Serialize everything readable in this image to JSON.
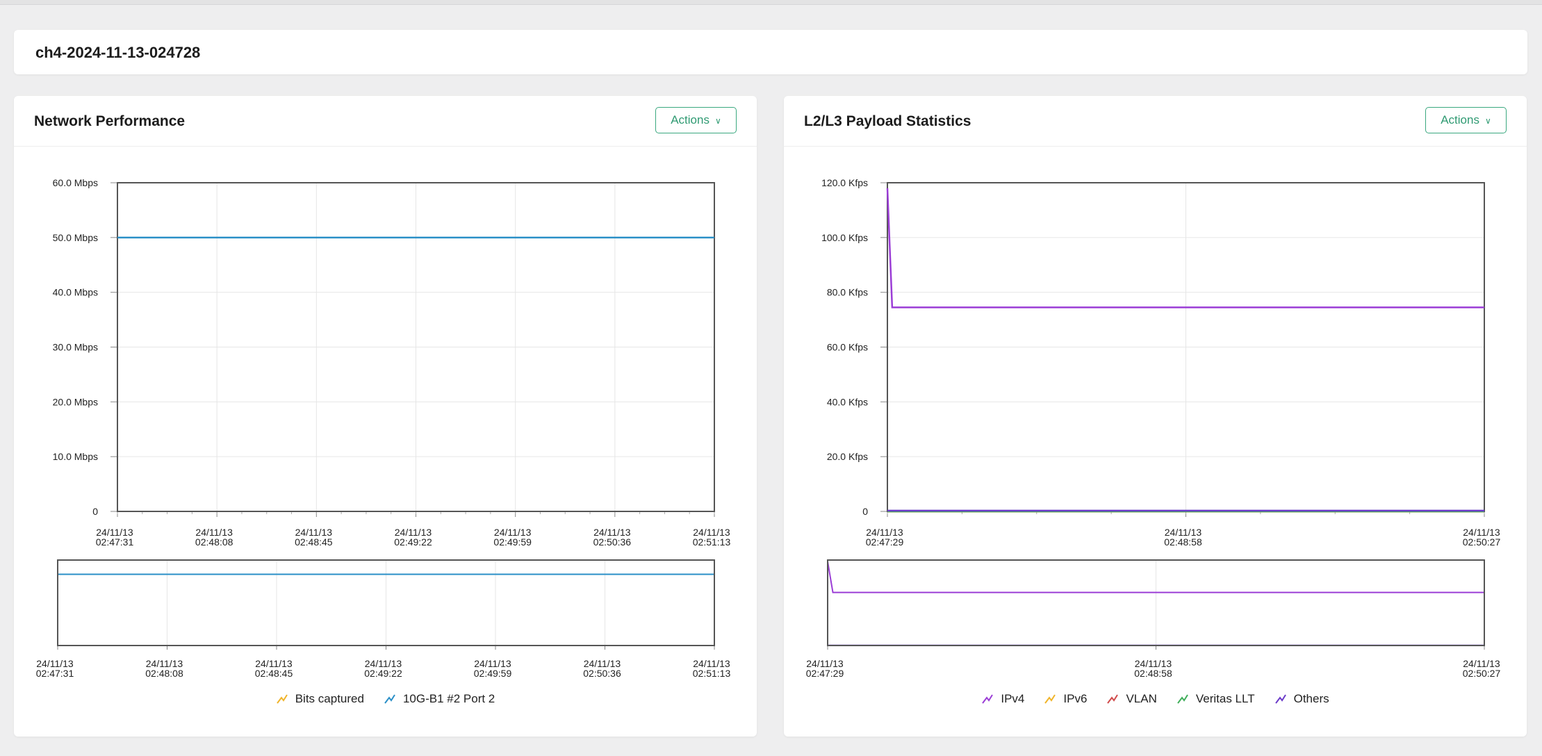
{
  "title_card": {
    "title": "ch4-2024-11-13-024728"
  },
  "panels": [
    {
      "id": "network-performance",
      "title": "Network Performance",
      "actions_label": "Actions",
      "legend": [
        {
          "label": "Bits captured",
          "color": "#f0b429"
        },
        {
          "label": "10G-B1 #2 Port 2",
          "color": "#2a8fc7"
        }
      ]
    },
    {
      "id": "l2l3-payload",
      "title": "L2/L3 Payload Statistics",
      "actions_label": "Actions",
      "legend": [
        {
          "label": "IPv4",
          "color": "#9b3dd6"
        },
        {
          "label": "IPv6",
          "color": "#f0b429"
        },
        {
          "label": "VLAN",
          "color": "#d04a4a"
        },
        {
          "label": "Veritas LLT",
          "color": "#3fae5a"
        },
        {
          "label": "Others",
          "color": "#6a3ac8"
        }
      ]
    }
  ],
  "chart_data": [
    {
      "type": "line",
      "title": "Network Performance",
      "y_unit": "Mbps",
      "ylim": [
        0,
        60
      ],
      "y_ticks": [
        "0",
        "10.0 Mbps",
        "20.0 Mbps",
        "30.0 Mbps",
        "40.0 Mbps",
        "50.0 Mbps",
        "60.0 Mbps"
      ],
      "x_ticks": [
        [
          "24/11/13",
          "02:47:31"
        ],
        [
          "24/11/13",
          "02:48:08"
        ],
        [
          "24/11/13",
          "02:48:45"
        ],
        [
          "24/11/13",
          "02:49:22"
        ],
        [
          "24/11/13",
          "02:49:59"
        ],
        [
          "24/11/13",
          "02:50:36"
        ],
        [
          "24/11/13",
          "02:51:13"
        ]
      ],
      "nav_x_ticks": [
        [
          "24/11/13",
          "02:47:31"
        ],
        [
          "24/11/13",
          "02:48:08"
        ],
        [
          "24/11/13",
          "02:48:45"
        ],
        [
          "24/11/13",
          "02:49:22"
        ],
        [
          "24/11/13",
          "02:49:59"
        ],
        [
          "24/11/13",
          "02:50:36"
        ],
        [
          "24/11/13",
          "02:51:13"
        ]
      ],
      "x_range": [
        "24/11/13 02:47:31",
        "24/11/13 02:51:13"
      ],
      "grid": true,
      "legend_position": "bottom",
      "series": [
        {
          "name": "Bits captured",
          "color": "#f0b429",
          "x": [
            0,
            1
          ],
          "y": [
            null,
            null
          ]
        },
        {
          "name": "10G-B1 #2 Port 2",
          "color": "#2a8fc7",
          "x": [
            0,
            1
          ],
          "y": [
            50,
            50
          ]
        }
      ]
    },
    {
      "type": "line",
      "title": "L2/L3 Payload Statistics",
      "y_unit": "Kfps",
      "ylim": [
        0,
        120
      ],
      "y_ticks": [
        "0",
        "20.0 Kfps",
        "40.0 Kfps",
        "60.0 Kfps",
        "80.0 Kfps",
        "100.0 Kfps",
        "120.0 Kfps"
      ],
      "x_ticks": [
        [
          "24/11/13",
          "02:47:29"
        ],
        [
          "24/11/13",
          "02:48:58"
        ],
        [
          "24/11/13",
          "02:50:27"
        ]
      ],
      "nav_x_ticks": [
        [
          "24/11/13",
          "02:47:29"
        ],
        [
          "24/11/13",
          "02:48:58"
        ],
        [
          "24/11/13",
          "02:50:27"
        ]
      ],
      "x_range": [
        "24/11/13 02:47:29",
        "24/11/13 02:50:27"
      ],
      "grid": true,
      "legend_position": "bottom",
      "series": [
        {
          "name": "IPv4",
          "color": "#9b3dd6",
          "x": [
            0,
            0.008,
            1
          ],
          "y": [
            118,
            74.5,
            74.5
          ]
        },
        {
          "name": "IPv6",
          "color": "#f0b429",
          "x": [
            0,
            1
          ],
          "y": [
            0,
            0
          ]
        },
        {
          "name": "VLAN",
          "color": "#d04a4a",
          "x": [
            0,
            1
          ],
          "y": [
            0,
            0
          ]
        },
        {
          "name": "Veritas LLT",
          "color": "#3fae5a",
          "x": [
            0,
            1
          ],
          "y": [
            0,
            0
          ]
        },
        {
          "name": "Others",
          "color": "#6a3ac8",
          "x": [
            0,
            1
          ],
          "y": [
            0.3,
            0.3
          ]
        }
      ]
    }
  ]
}
